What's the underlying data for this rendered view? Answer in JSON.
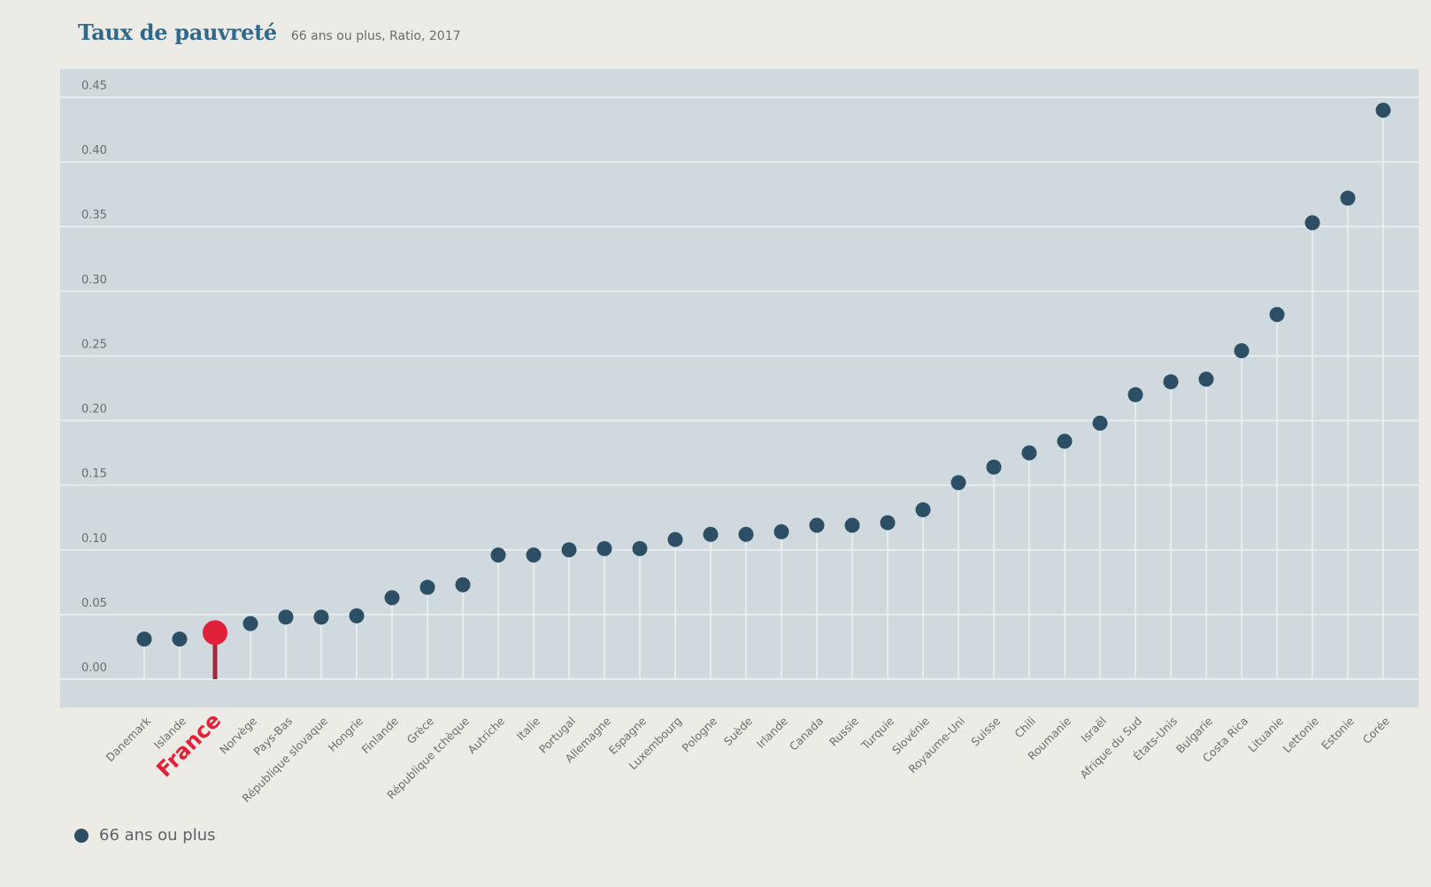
{
  "colors": {
    "background": "#ecebe6",
    "plot_background": "#cfd9de",
    "gridline": "#e8edef",
    "stem": "#eef2f3",
    "marker": "#2d4f66",
    "highlight": "#e0213a",
    "highlight_stem": "#a3283a",
    "title": "#2f6a8e",
    "tick_label": "#6a6d70"
  },
  "chart_data": {
    "type": "lollipop",
    "title": "Taux de pauvreté",
    "subtitle": "66 ans ou plus, Ratio, 2017",
    "xlabel": "",
    "ylabel": "",
    "ylim": [
      0,
      0.45
    ],
    "yticks": [
      0.0,
      0.05,
      0.1,
      0.15,
      0.2,
      0.25,
      0.3,
      0.35,
      0.4,
      0.45
    ],
    "ytick_labels": [
      "0.00",
      "0.05",
      "0.10",
      "0.15",
      "0.20",
      "0.25",
      "0.30",
      "0.35",
      "0.40",
      "0.45"
    ],
    "grid": true,
    "legend_position": "bottom-left",
    "highlight": "France",
    "categories": [
      "Danemark",
      "Islande",
      "France",
      "Norvège",
      "Pays-Bas",
      "République slovaque",
      "Hongrie",
      "Finlande",
      "Grèce",
      "République tchèque",
      "Autriche",
      "Italie",
      "Portugal",
      "Allemagne",
      "Espagne",
      "Luxembourg",
      "Pologne",
      "Suède",
      "Irlande",
      "Canada",
      "Russie",
      "Turquie",
      "Slovénie",
      "Royaume-Uni",
      "Suisse",
      "Chili",
      "Roumanie",
      "Israël",
      "Afrique du Sud",
      "États-Unis",
      "Bulgarie",
      "Costa Rica",
      "Lituanie",
      "Lettonie",
      "Estonie",
      "Corée"
    ],
    "series": [
      {
        "name": "66 ans ou plus",
        "values": [
          0.031,
          0.031,
          0.036,
          0.043,
          0.048,
          0.048,
          0.049,
          0.063,
          0.071,
          0.073,
          0.096,
          0.096,
          0.1,
          0.101,
          0.101,
          0.108,
          0.112,
          0.112,
          0.114,
          0.119,
          0.119,
          0.121,
          0.131,
          0.152,
          0.164,
          0.175,
          0.184,
          0.198,
          0.22,
          0.23,
          0.232,
          0.254,
          0.282,
          0.353,
          0.372,
          0.44
        ]
      }
    ]
  },
  "legend": {
    "items": [
      {
        "label": "66 ans ou plus"
      }
    ]
  }
}
